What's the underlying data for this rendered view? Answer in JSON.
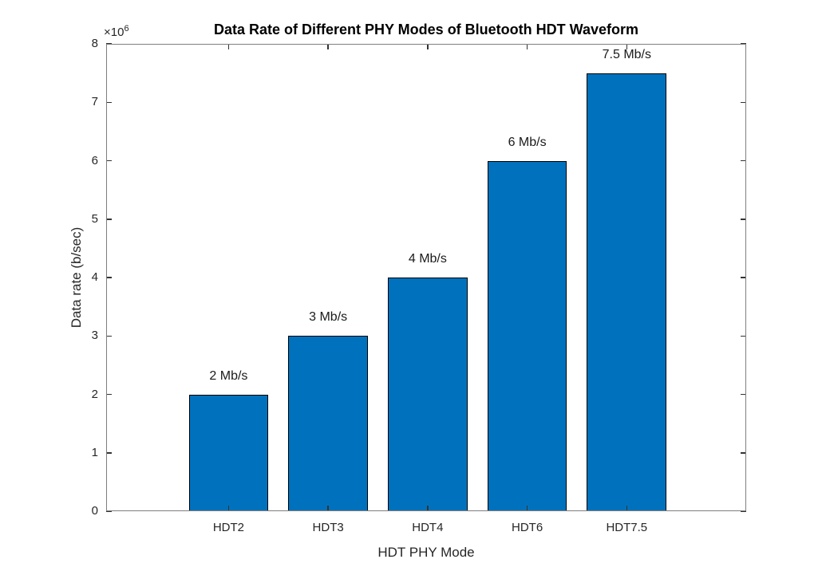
{
  "figure": {
    "background_color": "#ffffff"
  },
  "chart_data": {
    "type": "bar",
    "title": "Data Rate of Different PHY Modes of Bluetooth HDT Waveform",
    "xlabel": "HDT PHY Mode",
    "ylabel": "Data rate (b/sec)",
    "categories": [
      "HDT2",
      "HDT3",
      "HDT4",
      "HDT6",
      "HDT7.5"
    ],
    "values": [
      2000000,
      3000000,
      4000000,
      6000000,
      7500000
    ],
    "bar_labels": [
      "2 Mb/s",
      "3 Mb/s",
      "4 Mb/s",
      "6 Mb/s",
      "7.5 Mb/s"
    ],
    "x_positions": [
      1,
      2,
      3,
      4,
      5
    ],
    "bar_width_fraction": 0.8,
    "xlim": [
      -0.23,
      6.2
    ],
    "ylim": [
      0,
      8000000
    ],
    "ytick_values": [
      0,
      1000000,
      2000000,
      3000000,
      4000000,
      5000000,
      6000000,
      7000000,
      8000000
    ],
    "ytick_labels": [
      "0",
      "1",
      "2",
      "3",
      "4",
      "5",
      "6",
      "7",
      "8"
    ],
    "y_axis_multiplier_base": "×10",
    "y_axis_multiplier_exponent": "6",
    "grid": false,
    "legend": "none",
    "colors": {
      "bar_fill": "#0072BD",
      "bar_edge": "#000000",
      "box": "#7f7f7f",
      "tick": "#333333",
      "text": "#262626",
      "title_text": "#000000"
    }
  }
}
